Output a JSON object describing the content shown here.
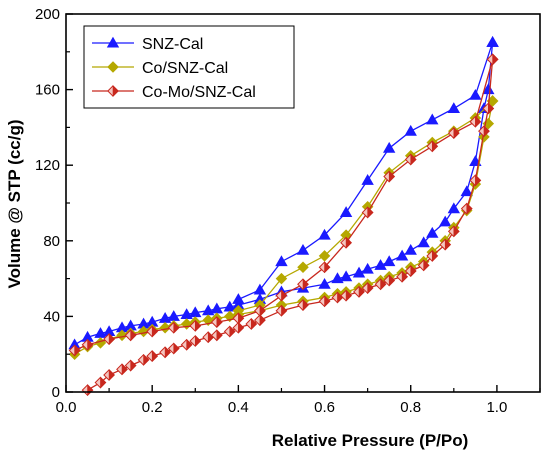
{
  "chart_data": {
    "type": "line",
    "xlabel": "Relative Pressure (P/Po)",
    "ylabel": "Volume @ STP (cc/g)",
    "xlim": [
      0.0,
      1.1
    ],
    "ylim": [
      0,
      200
    ],
    "xticks": [
      0.0,
      0.2,
      0.4,
      0.6,
      0.8,
      1.0
    ],
    "yticks": [
      0,
      40,
      80,
      120,
      160,
      200
    ],
    "x_tick_labels": [
      "0.0",
      "0.2",
      "0.4",
      "0.6",
      "0.8",
      "1.0"
    ],
    "y_tick_labels": [
      "0",
      "40",
      "80",
      "120",
      "160",
      "200"
    ],
    "grid": false,
    "legend_position": "top-left",
    "series": [
      {
        "name": "SNZ-Cal",
        "color": "#1a1aff",
        "marker": "triangle",
        "adsorption": [
          {
            "x": 0.02,
            "y": 25
          },
          {
            "x": 0.05,
            "y": 29
          },
          {
            "x": 0.08,
            "y": 31
          },
          {
            "x": 0.1,
            "y": 32
          },
          {
            "x": 0.13,
            "y": 34
          },
          {
            "x": 0.15,
            "y": 35
          },
          {
            "x": 0.18,
            "y": 36
          },
          {
            "x": 0.2,
            "y": 37
          },
          {
            "x": 0.23,
            "y": 39
          },
          {
            "x": 0.25,
            "y": 40
          },
          {
            "x": 0.28,
            "y": 41
          },
          {
            "x": 0.3,
            "y": 42
          },
          {
            "x": 0.33,
            "y": 43
          },
          {
            "x": 0.35,
            "y": 44
          },
          {
            "x": 0.38,
            "y": 45
          },
          {
            "x": 0.4,
            "y": 46
          },
          {
            "x": 0.45,
            "y": 49
          },
          {
            "x": 0.5,
            "y": 53
          },
          {
            "x": 0.55,
            "y": 55
          },
          {
            "x": 0.6,
            "y": 57
          },
          {
            "x": 0.63,
            "y": 60
          },
          {
            "x": 0.65,
            "y": 61
          },
          {
            "x": 0.68,
            "y": 63
          },
          {
            "x": 0.7,
            "y": 65
          },
          {
            "x": 0.73,
            "y": 67
          },
          {
            "x": 0.75,
            "y": 69
          },
          {
            "x": 0.78,
            "y": 72
          },
          {
            "x": 0.8,
            "y": 75
          },
          {
            "x": 0.83,
            "y": 79
          },
          {
            "x": 0.85,
            "y": 84
          },
          {
            "x": 0.88,
            "y": 90
          },
          {
            "x": 0.9,
            "y": 97
          },
          {
            "x": 0.93,
            "y": 106
          },
          {
            "x": 0.95,
            "y": 122
          },
          {
            "x": 0.97,
            "y": 150
          },
          {
            "x": 0.98,
            "y": 160
          },
          {
            "x": 0.99,
            "y": 185
          }
        ],
        "desorption": [
          {
            "x": 0.99,
            "y": 185
          },
          {
            "x": 0.95,
            "y": 157
          },
          {
            "x": 0.9,
            "y": 150
          },
          {
            "x": 0.85,
            "y": 144
          },
          {
            "x": 0.8,
            "y": 138
          },
          {
            "x": 0.75,
            "y": 129
          },
          {
            "x": 0.7,
            "y": 112
          },
          {
            "x": 0.65,
            "y": 95
          },
          {
            "x": 0.6,
            "y": 83
          },
          {
            "x": 0.55,
            "y": 75
          },
          {
            "x": 0.5,
            "y": 69
          },
          {
            "x": 0.45,
            "y": 54
          },
          {
            "x": 0.4,
            "y": 49
          }
        ]
      },
      {
        "name": "Co/SNZ-Cal",
        "color": "#b5a800",
        "marker": "diamond",
        "adsorption": [
          {
            "x": 0.02,
            "y": 20
          },
          {
            "x": 0.05,
            "y": 24
          },
          {
            "x": 0.08,
            "y": 26
          },
          {
            "x": 0.1,
            "y": 28
          },
          {
            "x": 0.13,
            "y": 30
          },
          {
            "x": 0.15,
            "y": 31
          },
          {
            "x": 0.18,
            "y": 32
          },
          {
            "x": 0.2,
            "y": 33
          },
          {
            "x": 0.23,
            "y": 34
          },
          {
            "x": 0.25,
            "y": 35
          },
          {
            "x": 0.28,
            "y": 36
          },
          {
            "x": 0.3,
            "y": 37
          },
          {
            "x": 0.33,
            "y": 38
          },
          {
            "x": 0.35,
            "y": 39
          },
          {
            "x": 0.38,
            "y": 40
          },
          {
            "x": 0.4,
            "y": 41
          },
          {
            "x": 0.45,
            "y": 43
          },
          {
            "x": 0.5,
            "y": 46
          },
          {
            "x": 0.55,
            "y": 48
          },
          {
            "x": 0.6,
            "y": 50
          },
          {
            "x": 0.63,
            "y": 52
          },
          {
            "x": 0.65,
            "y": 53
          },
          {
            "x": 0.68,
            "y": 55
          },
          {
            "x": 0.7,
            "y": 57
          },
          {
            "x": 0.73,
            "y": 59
          },
          {
            "x": 0.75,
            "y": 61
          },
          {
            "x": 0.78,
            "y": 63
          },
          {
            "x": 0.8,
            "y": 66
          },
          {
            "x": 0.83,
            "y": 69
          },
          {
            "x": 0.85,
            "y": 74
          },
          {
            "x": 0.88,
            "y": 80
          },
          {
            "x": 0.9,
            "y": 87
          },
          {
            "x": 0.93,
            "y": 96
          },
          {
            "x": 0.95,
            "y": 110
          },
          {
            "x": 0.97,
            "y": 135
          },
          {
            "x": 0.98,
            "y": 142
          },
          {
            "x": 0.99,
            "y": 154
          }
        ],
        "desorption": [
          {
            "x": 0.99,
            "y": 154
          },
          {
            "x": 0.95,
            "y": 145
          },
          {
            "x": 0.9,
            "y": 138
          },
          {
            "x": 0.85,
            "y": 132
          },
          {
            "x": 0.8,
            "y": 125
          },
          {
            "x": 0.75,
            "y": 116
          },
          {
            "x": 0.7,
            "y": 98
          },
          {
            "x": 0.65,
            "y": 83
          },
          {
            "x": 0.6,
            "y": 72
          },
          {
            "x": 0.55,
            "y": 66
          },
          {
            "x": 0.5,
            "y": 60
          },
          {
            "x": 0.45,
            "y": 46
          },
          {
            "x": 0.4,
            "y": 43
          }
        ]
      },
      {
        "name": "Co-Mo/SNZ-Cal",
        "color": "#c8281e",
        "marker": "half-diamond",
        "adsorption": [
          {
            "x": 0.05,
            "y": 1
          },
          {
            "x": 0.08,
            "y": 5
          },
          {
            "x": 0.1,
            "y": 9
          },
          {
            "x": 0.13,
            "y": 12
          },
          {
            "x": 0.15,
            "y": 14
          },
          {
            "x": 0.18,
            "y": 17
          },
          {
            "x": 0.2,
            "y": 19
          },
          {
            "x": 0.23,
            "y": 21
          },
          {
            "x": 0.25,
            "y": 23
          },
          {
            "x": 0.28,
            "y": 25
          },
          {
            "x": 0.3,
            "y": 27
          },
          {
            "x": 0.33,
            "y": 29
          },
          {
            "x": 0.35,
            "y": 30
          },
          {
            "x": 0.38,
            "y": 32
          },
          {
            "x": 0.4,
            "y": 34
          },
          {
            "x": 0.43,
            "y": 36
          },
          {
            "x": 0.45,
            "y": 38
          },
          {
            "x": 0.5,
            "y": 43
          },
          {
            "x": 0.55,
            "y": 46
          },
          {
            "x": 0.6,
            "y": 48
          },
          {
            "x": 0.63,
            "y": 50
          },
          {
            "x": 0.65,
            "y": 51
          },
          {
            "x": 0.68,
            "y": 53
          },
          {
            "x": 0.7,
            "y": 55
          },
          {
            "x": 0.73,
            "y": 57
          },
          {
            "x": 0.75,
            "y": 59
          },
          {
            "x": 0.78,
            "y": 61
          },
          {
            "x": 0.8,
            "y": 64
          },
          {
            "x": 0.83,
            "y": 67
          },
          {
            "x": 0.85,
            "y": 72
          },
          {
            "x": 0.88,
            "y": 78
          },
          {
            "x": 0.9,
            "y": 85
          },
          {
            "x": 0.93,
            "y": 97
          },
          {
            "x": 0.95,
            "y": 112
          },
          {
            "x": 0.97,
            "y": 138
          },
          {
            "x": 0.98,
            "y": 150
          },
          {
            "x": 0.99,
            "y": 176
          }
        ],
        "desorption": [
          {
            "x": 0.99,
            "y": 176
          },
          {
            "x": 0.95,
            "y": 143
          },
          {
            "x": 0.9,
            "y": 137
          },
          {
            "x": 0.85,
            "y": 130
          },
          {
            "x": 0.8,
            "y": 123
          },
          {
            "x": 0.75,
            "y": 114
          },
          {
            "x": 0.7,
            "y": 95
          },
          {
            "x": 0.65,
            "y": 79
          },
          {
            "x": 0.6,
            "y": 66
          },
          {
            "x": 0.55,
            "y": 57
          },
          {
            "x": 0.5,
            "y": 51
          },
          {
            "x": 0.45,
            "y": 43
          },
          {
            "x": 0.4,
            "y": 39
          },
          {
            "x": 0.35,
            "y": 37
          },
          {
            "x": 0.3,
            "y": 35
          },
          {
            "x": 0.25,
            "y": 34
          },
          {
            "x": 0.2,
            "y": 32
          },
          {
            "x": 0.15,
            "y": 30
          },
          {
            "x": 0.1,
            "y": 28
          },
          {
            "x": 0.05,
            "y": 25
          },
          {
            "x": 0.02,
            "y": 22
          }
        ]
      }
    ]
  }
}
